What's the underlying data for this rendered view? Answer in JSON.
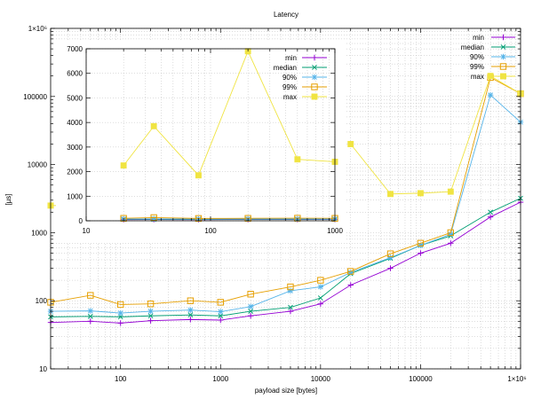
{
  "chart_data": [
    {
      "type": "line",
      "title": "Latency",
      "xlabel": "payload size [bytes]",
      "ylabel": "[µs]",
      "xscale": "log",
      "yscale": "log",
      "xlim": [
        20,
        1000000
      ],
      "ylim": [
        10,
        1000000
      ],
      "x_tick_labels": [
        "100",
        "1000",
        "10000",
        "100000",
        "1×10⁶"
      ],
      "y_tick_labels": [
        "10",
        "100",
        "1000",
        "10000",
        "100000",
        "1×10⁶"
      ],
      "grid": true,
      "legend": "top-right",
      "x": [
        20,
        50,
        100,
        200,
        500,
        1000,
        2000,
        5000,
        10000,
        20000,
        50000,
        100000,
        200000,
        500000,
        1000000
      ],
      "series": [
        {
          "name": "min",
          "color": "#9400d3",
          "marker": "plus",
          "values": [
            48,
            50,
            47,
            51,
            53,
            52,
            60,
            70,
            90,
            170,
            300,
            500,
            700,
            1700,
            2800
          ]
        },
        {
          "name": "median",
          "color": "#009e73",
          "marker": "x",
          "values": [
            58,
            59,
            58,
            60,
            62,
            60,
            70,
            80,
            110,
            250,
            420,
            650,
            900,
            2000,
            3200
          ]
        },
        {
          "name": "90%",
          "color": "#56b4e9",
          "marker": "star",
          "values": [
            70,
            71,
            66,
            70,
            73,
            69,
            82,
            140,
            160,
            260,
            430,
            650,
            950,
            105000,
            42000
          ]
        },
        {
          "name": "99%",
          "color": "#e69f00",
          "marker": "square-open",
          "values": [
            95,
            120,
            88,
            90,
            100,
            95,
            125,
            160,
            200,
            270,
            490,
            700,
            1000,
            190000,
            110000
          ]
        },
        {
          "name": "max",
          "color": "#f0e442",
          "marker": "square-filled",
          "values": [
            null,
            null,
            null,
            null,
            null,
            null,
            null,
            null,
            null,
            20000,
            3700,
            3800,
            4000,
            200000,
            110000
          ]
        }
      ]
    },
    {
      "type": "line",
      "title": "",
      "xscale": "log",
      "yscale": "linear",
      "xlim": [
        10,
        1000
      ],
      "ylim": [
        0,
        7000
      ],
      "x_tick_labels": [
        "10",
        "100",
        "1000"
      ],
      "y_tick_labels": [
        "0",
        "1000",
        "2000",
        "3000",
        "4000",
        "5000",
        "6000",
        "7000"
      ],
      "grid": true,
      "legend": "top-right",
      "x": [
        20,
        35,
        80,
        200,
        500,
        1000
      ],
      "series": [
        {
          "name": "min",
          "color": "#9400d3",
          "marker": "plus",
          "values": [
            50,
            52,
            48,
            52,
            54,
            52
          ]
        },
        {
          "name": "median",
          "color": "#009e73",
          "marker": "x",
          "values": [
            60,
            62,
            58,
            60,
            62,
            60
          ]
        },
        {
          "name": "90%",
          "color": "#56b4e9",
          "marker": "star",
          "values": [
            75,
            80,
            70,
            75,
            75,
            72
          ]
        },
        {
          "name": "99%",
          "color": "#e69f00",
          "marker": "square-open",
          "values": [
            100,
            130,
            95,
            100,
            105,
            100
          ]
        },
        {
          "name": "max",
          "color": "#f0e442",
          "marker": "square-filled",
          "values": [
            2250,
            3850,
            1850,
            6900,
            2500,
            2400
          ]
        }
      ]
    }
  ]
}
